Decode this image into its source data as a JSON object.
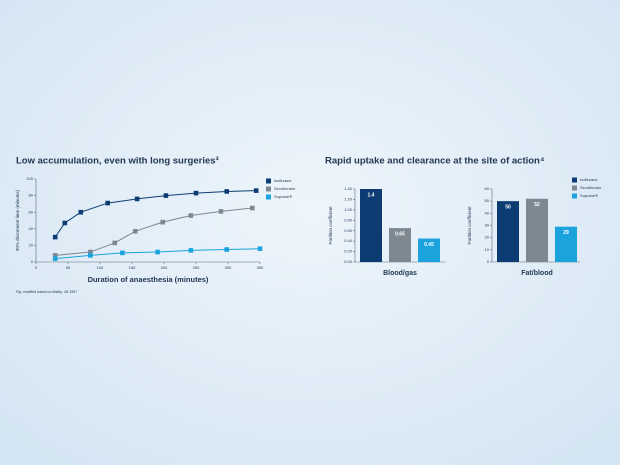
{
  "chart_data": [
    {
      "type": "line",
      "title": "Low accumulation, even with long surgeries³",
      "ylabel": "90% decrement time (minutes)",
      "xlabel": "Duration of anaesthesia (minutes)",
      "footnote": "Fig. modified based on Bailey, JM 1997",
      "xlim": [
        0,
        350
      ],
      "xticks": [
        0,
        50,
        100,
        150,
        200,
        250,
        300,
        350
      ],
      "ylim": [
        0,
        100
      ],
      "yticks": [
        0,
        20,
        40,
        60,
        80,
        100
      ],
      "legend": true,
      "series": [
        {
          "name": "Isoflurane",
          "color": "#0d3b73",
          "x": [
            30,
            45,
            70,
            112,
            158,
            203,
            250,
            298,
            344
          ],
          "values": [
            30,
            47,
            60,
            71,
            76,
            80,
            83,
            85,
            86
          ]
        },
        {
          "name": "Sevoflurane",
          "color": "#7d8891",
          "x": [
            30,
            85,
            123,
            155,
            198,
            242,
            289,
            338
          ],
          "values": [
            8,
            12,
            23,
            37,
            48,
            56,
            61,
            65
          ]
        },
        {
          "name": "Suprane®",
          "color": "#1aa3dc",
          "x": [
            30,
            85,
            135,
            190,
            242,
            298,
            350
          ],
          "values": [
            4,
            8,
            11,
            12,
            14,
            15,
            16
          ]
        }
      ]
    },
    {
      "type": "bar",
      "title": "Rapid uptake and clearance at the site of action⁴",
      "ylabel": "Partition coefficient",
      "xlabel": "Blood/gas",
      "ylim": [
        0,
        1.4
      ],
      "yticks": [
        {
          "value": 0,
          "label": "0.00"
        },
        {
          "value": 0.2,
          "label": "0.20"
        },
        {
          "value": 0.4,
          "label": "0.40"
        },
        {
          "value": 0.6,
          "label": "0.60"
        },
        {
          "value": 0.8,
          "label": "0.80"
        },
        {
          "value": 1,
          "label": "1.00"
        },
        {
          "value": 1.2,
          "label": "1.20"
        },
        {
          "value": 1.4,
          "label": "1.40"
        }
      ],
      "values": [
        1.4,
        0.65,
        0.45
      ],
      "colors": [
        "#0d3b73",
        "#7d8891",
        "#1aa3dc"
      ]
    },
    {
      "type": "bar",
      "ylabel": "Partition coefficient",
      "xlabel": "Fat/blood",
      "ylim": [
        0,
        60
      ],
      "yticks": [
        0,
        10,
        20,
        30,
        40,
        50,
        60
      ],
      "legend": true,
      "series": [
        {
          "name": "Isoflurane",
          "color": "#0d3b73",
          "values": [
            50
          ]
        },
        {
          "name": "Sevoflurane",
          "color": "#7d8891",
          "values": [
            52
          ]
        },
        {
          "name": "Suprane®",
          "color": "#1aa3dc",
          "values": [
            29
          ]
        }
      ]
    }
  ]
}
